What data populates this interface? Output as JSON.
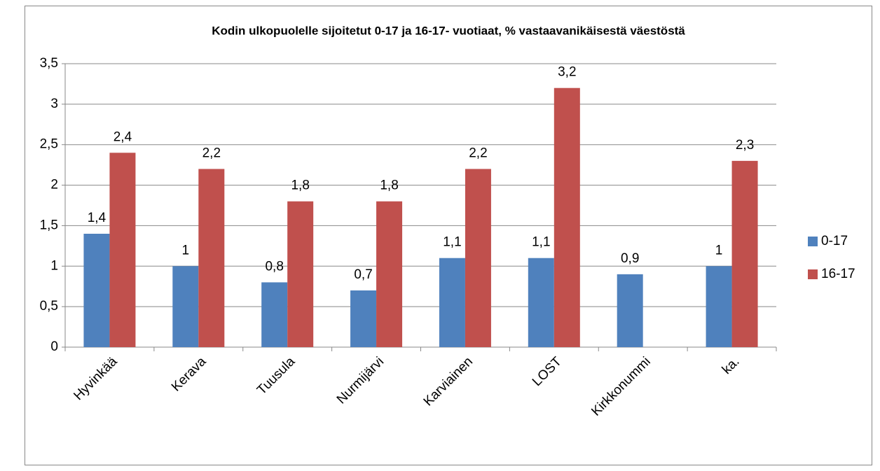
{
  "chart_data": {
    "type": "bar",
    "title": "Kodin ulkopuolelle sijoitetut 0-17 ja 16-17- vuotiaat, % vastaavanikäisestä väestöstä",
    "categories": [
      "Hyvinkää",
      "Kerava",
      "Tuusula",
      "Nurmijärvi",
      "Karviainen",
      "LOST",
      "Kirkkonummi",
      "ka."
    ],
    "series": [
      {
        "name": "0-17",
        "color": "#4f81bd",
        "values": [
          1.4,
          1,
          0.8,
          0.7,
          1.1,
          1.1,
          0.9,
          1
        ],
        "value_labels": [
          "1,4",
          "1",
          "0,8",
          "0,7",
          "1,1",
          "1,1",
          "0,9",
          "1"
        ]
      },
      {
        "name": "16-17",
        "color": "#c0504d",
        "values": [
          2.4,
          2.2,
          1.8,
          1.8,
          2.2,
          3.2,
          null,
          2.3
        ],
        "value_labels": [
          "2,4",
          "2,2",
          "1,8",
          "1,8",
          "2,2",
          "3,2",
          null,
          "2,3"
        ]
      }
    ],
    "ylim": [
      0,
      3.5
    ],
    "yticks": [
      0,
      {
        "value": 0.5,
        "label": "0,5"
      },
      1,
      {
        "value": 1.5,
        "label": "1,5"
      },
      2,
      {
        "value": 2.5,
        "label": "2,5"
      },
      3,
      {
        "value": 3.5,
        "label": "3,5"
      }
    ],
    "grid": true,
    "legend": "right"
  }
}
